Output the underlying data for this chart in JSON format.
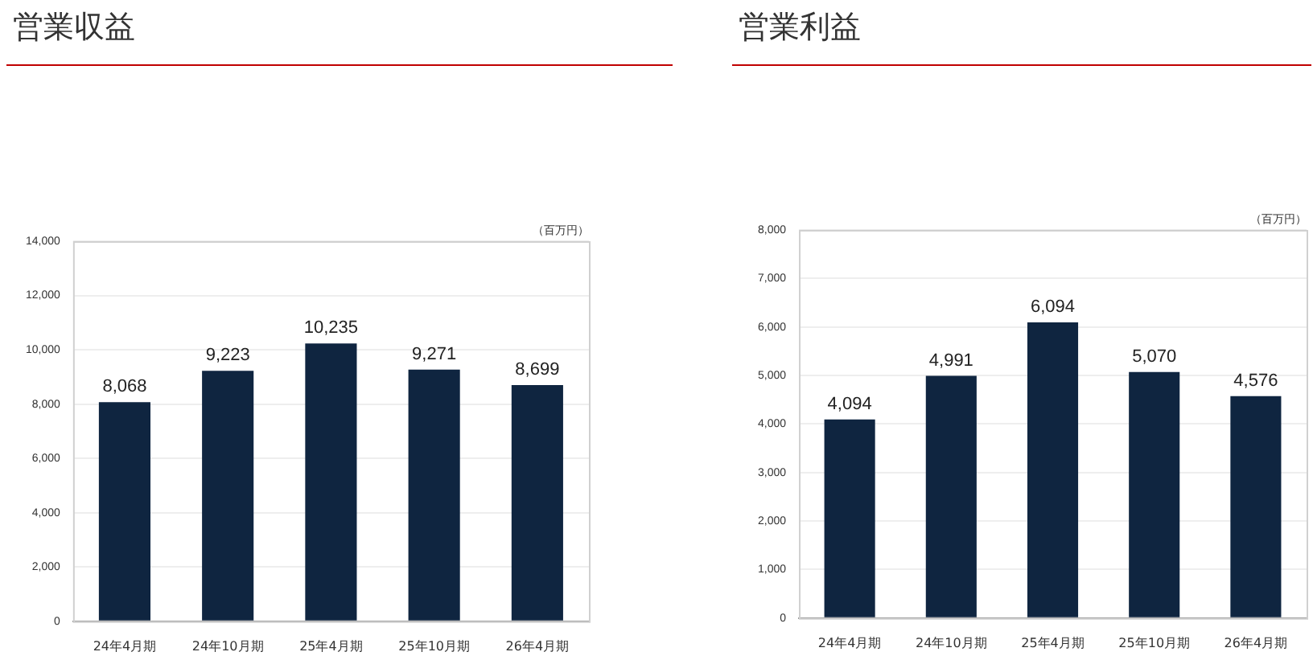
{
  "chart_data": [
    {
      "type": "bar",
      "title": "営業収益",
      "ylabel": "（百万円）",
      "categories": [
        "24年4月期",
        "24年10月期",
        "25年4月期",
        "25年10月期",
        "26年4月期"
      ],
      "series": [
        {
          "color": "#0f2540",
          "values": [
            8068,
            9223,
            10235,
            9271,
            8699
          ],
          "value_labels": [
            "8,068",
            "9,223",
            "10,235",
            "9,271",
            "8,699"
          ]
        }
      ],
      "ylim": [
        0,
        14000
      ],
      "yticks": [
        0,
        {
          "value": 2000,
          "label": "2,000"
        },
        {
          "value": 4000,
          "label": "4,000"
        },
        {
          "value": 6000,
          "label": "6,000"
        },
        {
          "value": 8000,
          "label": "8,000"
        },
        {
          "value": 10000,
          "label": "10,000"
        },
        {
          "value": 12000,
          "label": "12,000"
        },
        {
          "value": 14000,
          "label": "14,000"
        }
      ],
      "grid": "y"
    },
    {
      "type": "bar",
      "title": "営業利益",
      "ylabel": "（百万円）",
      "categories": [
        "24年4月期",
        "24年10月期",
        "25年4月期",
        "25年10月期",
        "26年4月期"
      ],
      "series": [
        {
          "color": "#0f2540",
          "values": [
            4094,
            4991,
            6094,
            5070,
            4576
          ],
          "value_labels": [
            "4,094",
            "4,991",
            "6,094",
            "5,070",
            "4,576"
          ]
        }
      ],
      "ylim": [
        0,
        8000
      ],
      "yticks": [
        0,
        {
          "value": 1000,
          "label": "1,000"
        },
        {
          "value": 2000,
          "label": "2,000"
        },
        {
          "value": 3000,
          "label": "3,000"
        },
        {
          "value": 4000,
          "label": "4,000"
        },
        {
          "value": 5000,
          "label": "5,000"
        },
        {
          "value": 6000,
          "label": "6,000"
        },
        {
          "value": 7000,
          "label": "7,000"
        },
        {
          "value": 8000,
          "label": "8,000"
        }
      ],
      "grid": "y"
    }
  ]
}
